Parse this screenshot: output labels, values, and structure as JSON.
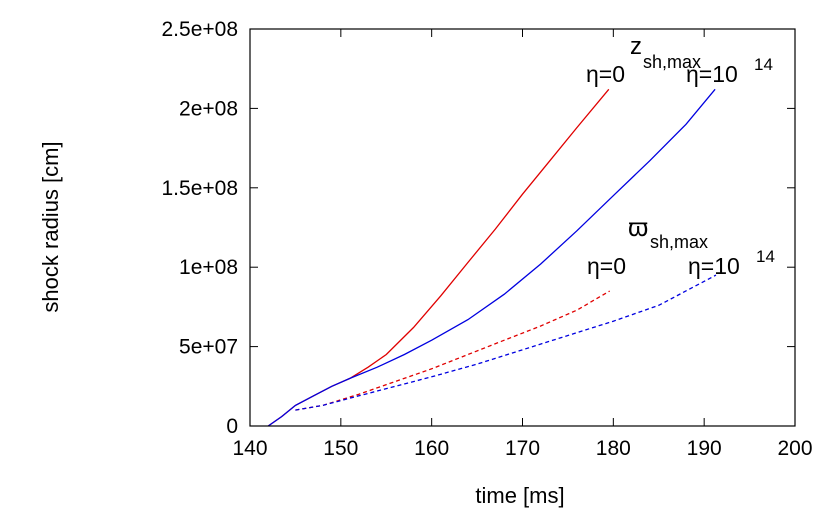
{
  "chart_data": {
    "type": "line",
    "title": "",
    "xlabel": "time [ms]",
    "ylabel": "shock radius [cm]",
    "xlim": [
      140,
      200
    ],
    "ylim": [
      0,
      250000000
    ],
    "xticks": [
      140,
      150,
      160,
      170,
      180,
      190,
      200
    ],
    "xtick_labels": [
      "140",
      "150",
      "160",
      "170",
      "180",
      "190",
      "200"
    ],
    "yticks": [
      0,
      50000000,
      100000000,
      150000000,
      200000000,
      250000000
    ],
    "ytick_labels": [
      "0",
      "5e+07",
      "1e+08",
      "1.5e+08",
      "2e+08",
      "2.5e+08"
    ],
    "grid": false,
    "legend": "none",
    "series": [
      {
        "color": "#e00000",
        "dash": "solid",
        "points": [
          [
            142.0,
            0
          ],
          [
            143.5,
            6000000
          ],
          [
            145.0,
            13000000
          ],
          [
            147.0,
            19000000
          ],
          [
            149.0,
            25000000
          ],
          [
            151.0,
            30000000
          ],
          [
            153.0,
            37000000
          ],
          [
            155.0,
            45000000
          ],
          [
            158.0,
            62000000
          ],
          [
            161.0,
            82000000
          ],
          [
            164.0,
            103000000
          ],
          [
            167.0,
            124000000
          ],
          [
            170.0,
            146000000
          ],
          [
            173.0,
            167000000
          ],
          [
            176.0,
            188000000
          ],
          [
            179.5,
            212000000
          ]
        ]
      },
      {
        "color": "#0000e0",
        "dash": "solid",
        "points": [
          [
            142.0,
            0
          ],
          [
            143.5,
            6000000
          ],
          [
            145.0,
            13000000
          ],
          [
            147.0,
            19000000
          ],
          [
            149.0,
            25000000
          ],
          [
            151.0,
            30000000
          ],
          [
            154.0,
            37000000
          ],
          [
            157.0,
            45000000
          ],
          [
            160.0,
            54000000
          ],
          [
            164.0,
            67000000
          ],
          [
            168.0,
            83000000
          ],
          [
            172.0,
            102000000
          ],
          [
            176.0,
            123000000
          ],
          [
            180.0,
            145000000
          ],
          [
            184.0,
            167000000
          ],
          [
            188.0,
            190000000
          ],
          [
            191.2,
            212000000
          ]
        ]
      },
      {
        "color": "#e00000",
        "dash": "dashed",
        "points": [
          [
            145.0,
            10000000
          ],
          [
            148.0,
            13000000
          ],
          [
            152.0,
            20000000
          ],
          [
            156.0,
            28000000
          ],
          [
            160.0,
            36000000
          ],
          [
            164.0,
            45000000
          ],
          [
            168.0,
            54000000
          ],
          [
            172.0,
            63000000
          ],
          [
            176.0,
            73000000
          ],
          [
            179.6,
            85000000
          ]
        ]
      },
      {
        "color": "#0000e0",
        "dash": "dashed",
        "points": [
          [
            145.0,
            10000000
          ],
          [
            148.0,
            13000000
          ],
          [
            152.0,
            19000000
          ],
          [
            156.0,
            25000000
          ],
          [
            160.0,
            31000000
          ],
          [
            165.0,
            39000000
          ],
          [
            170.0,
            48000000
          ],
          [
            175.0,
            57000000
          ],
          [
            180.0,
            66000000
          ],
          [
            185.0,
            76000000
          ],
          [
            191.3,
            95000000
          ]
        ]
      }
    ],
    "annotations": {
      "zmax_symbol": "z",
      "zmax_subscript": "sh,max",
      "eta0_top": "η=0",
      "eta14_top_base": "η=10",
      "eta14_top_exp": "14",
      "varpi_symbol": "ϖ",
      "varpi_subscript": "sh,max",
      "eta0_bottom": "η=0",
      "eta14_bottom_base": "η=10",
      "eta14_bottom_exp": "14"
    }
  }
}
